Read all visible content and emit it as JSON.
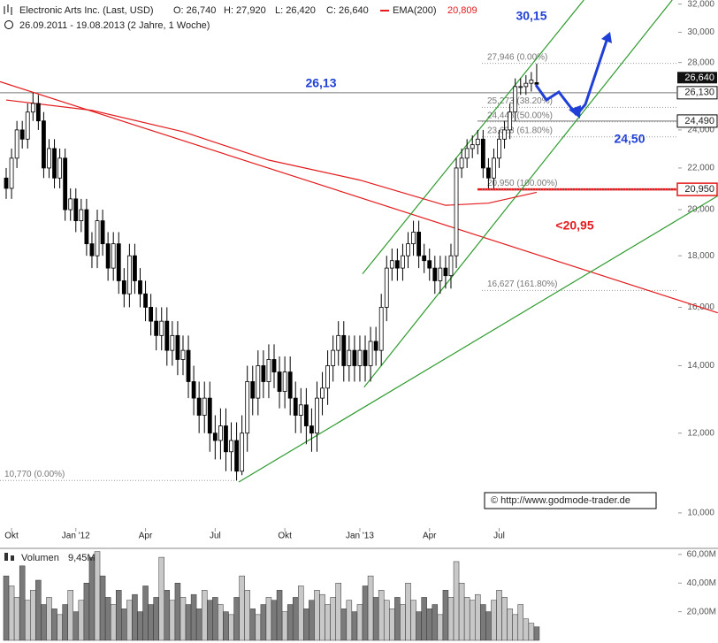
{
  "chart_data": {
    "type": "candlestick",
    "title": "Electronic Arts Inc. (Last, USD)",
    "header_labels": [
      "O: 26,740",
      "H: 27,920",
      "L: 26,420",
      "C: 26,640"
    ],
    "ema_label": "EMA(200)",
    "ema_value": "20,809",
    "subtitle": "26.09.2011 - 19.08.2013 (2 Jahre, 1 Woche)",
    "log_scale": true,
    "categories": [
      null,
      "Okt",
      null,
      null,
      null,
      null,
      null,
      null,
      null,
      null,
      null,
      null,
      null,
      "Jan '12",
      null,
      null,
      null,
      null,
      null,
      null,
      null,
      null,
      null,
      null,
      null,
      null,
      "Apr",
      null,
      null,
      null,
      null,
      null,
      null,
      null,
      null,
      null,
      null,
      null,
      null,
      "Jul",
      null,
      null,
      null,
      null,
      null,
      null,
      null,
      null,
      null,
      null,
      null,
      null,
      "Okt",
      null,
      null,
      null,
      null,
      null,
      null,
      null,
      null,
      null,
      null,
      null,
      null,
      null,
      "Jan '13",
      null,
      null,
      null,
      null,
      null,
      null,
      null,
      null,
      null,
      null,
      null,
      null,
      "Apr",
      null,
      null,
      null,
      null,
      null,
      null,
      null,
      null,
      null,
      null,
      null,
      null,
      "Jul",
      null,
      null,
      null,
      null,
      null,
      null,
      null
    ],
    "open": [
      21.5,
      21.0,
      22.5,
      24.0,
      23.5,
      25.0,
      25.5,
      24.5,
      22.0,
      23.0,
      21.5,
      22.5,
      20.0,
      20.5,
      19.5,
      20.0,
      18.5,
      18.0,
      19.5,
      18.5,
      17.5,
      18.5,
      17.0,
      16.5,
      18.0,
      17.0,
      16.5,
      16.0,
      15.5,
      15.0,
      15.5,
      14.5,
      15.0,
      14.2,
      14.5,
      13.5,
      13.0,
      12.5,
      13.0,
      12.0,
      11.8,
      12.2,
      11.5,
      11.8,
      11.0,
      12.0,
      13.5,
      13.0,
      14.0,
      13.5,
      14.2,
      13.8,
      13.2,
      13.8,
      13.0,
      12.5,
      12.8,
      12.2,
      12.0,
      13.0,
      13.3,
      14.0,
      14.5,
      15.0,
      14.0,
      14.5,
      14.0,
      14.5,
      14.0,
      14.8,
      14.5,
      16.0,
      17.5,
      17.8,
      17.5,
      18.0,
      18.5,
      19.0,
      18.0,
      17.8,
      17.5,
      17.0,
      17.5,
      17.2,
      18.0,
      22.0,
      22.5,
      23.0,
      23.2,
      23.5,
      22.0,
      21.5,
      22.5,
      23.5,
      24.0,
      25.0,
      26.5,
      26.5,
      26.7,
      26.74
    ],
    "high": [
      22.0,
      23.0,
      24.5,
      24.5,
      25.5,
      26.13,
      26.0,
      25.0,
      23.5,
      23.5,
      23.0,
      23.0,
      21.0,
      21.0,
      20.5,
      20.5,
      19.0,
      20.0,
      20.0,
      19.0,
      19.0,
      19.0,
      17.5,
      18.5,
      18.5,
      17.5,
      17.0,
      16.5,
      16.0,
      16.0,
      16.0,
      15.5,
      15.5,
      15.0,
      15.0,
      14.0,
      13.5,
      13.5,
      13.5,
      12.5,
      12.7,
      12.7,
      12.3,
      12.3,
      12.5,
      14.0,
      14.0,
      14.5,
      14.5,
      14.7,
      14.7,
      14.3,
      14.3,
      14.3,
      13.5,
      13.3,
      13.3,
      12.7,
      13.5,
      13.8,
      14.5,
      15.0,
      15.5,
      15.5,
      15.0,
      15.0,
      15.0,
      15.0,
      15.3,
      15.3,
      16.5,
      18.0,
      18.3,
      18.3,
      18.5,
      19.0,
      19.5,
      19.5,
      18.5,
      18.3,
      18.0,
      18.0,
      18.0,
      18.5,
      22.5,
      23.0,
      23.5,
      23.7,
      24.0,
      24.0,
      22.5,
      23.0,
      24.0,
      24.5,
      25.5,
      27.0,
      27.0,
      27.2,
      27.4,
      27.92
    ],
    "low": [
      20.5,
      20.5,
      22.0,
      23.0,
      23.0,
      24.5,
      24.0,
      21.5,
      21.5,
      21.0,
      21.0,
      19.5,
      19.5,
      19.0,
      19.0,
      18.0,
      17.5,
      17.5,
      18.0,
      17.0,
      17.0,
      16.5,
      16.0,
      16.0,
      16.5,
      16.0,
      15.5,
      15.0,
      14.5,
      14.5,
      14.0,
      14.0,
      13.7,
      13.7,
      13.0,
      12.5,
      12.0,
      12.0,
      11.5,
      11.3,
      11.3,
      11.0,
      11.0,
      10.77,
      10.9,
      11.5,
      12.5,
      12.5,
      13.0,
      13.0,
      13.3,
      12.7,
      12.7,
      12.5,
      12.0,
      12.0,
      11.7,
      11.5,
      11.5,
      12.5,
      12.8,
      13.5,
      14.0,
      13.5,
      13.5,
      13.5,
      13.5,
      13.5,
      13.5,
      14.0,
      14.0,
      15.5,
      17.0,
      17.0,
      17.0,
      17.5,
      18.0,
      17.5,
      17.3,
      17.0,
      16.5,
      16.5,
      16.7,
      16.7,
      17.5,
      21.5,
      22.0,
      22.5,
      22.7,
      21.5,
      21.0,
      21.0,
      22.0,
      23.0,
      23.5,
      24.5,
      26.0,
      26.0,
      26.2,
      26.42
    ],
    "close": [
      21.0,
      22.5,
      24.0,
      23.5,
      25.0,
      25.5,
      24.5,
      22.0,
      23.0,
      21.5,
      22.5,
      20.0,
      20.5,
      19.5,
      20.0,
      18.5,
      18.0,
      19.5,
      18.5,
      17.5,
      18.5,
      17.0,
      16.5,
      18.0,
      17.0,
      16.5,
      16.0,
      15.5,
      15.0,
      15.5,
      14.5,
      15.0,
      14.2,
      14.5,
      13.5,
      13.0,
      12.5,
      13.0,
      12.0,
      11.8,
      12.2,
      11.5,
      11.8,
      11.0,
      12.0,
      13.5,
      13.0,
      14.0,
      13.5,
      14.2,
      13.8,
      13.2,
      13.8,
      13.0,
      12.5,
      12.8,
      12.2,
      12.0,
      13.0,
      13.3,
      14.0,
      14.5,
      15.0,
      14.0,
      14.5,
      14.0,
      14.5,
      14.0,
      14.8,
      14.5,
      16.0,
      17.5,
      17.8,
      17.5,
      18.0,
      18.5,
      19.0,
      18.0,
      17.8,
      17.5,
      17.0,
      17.5,
      17.2,
      18.0,
      22.0,
      22.5,
      23.0,
      23.2,
      23.5,
      22.0,
      21.5,
      22.5,
      23.5,
      24.0,
      25.0,
      26.5,
      26.5,
      26.7,
      26.9,
      26.64
    ],
    "last_label": "26,640",
    "ylim": [
      9.66,
      32.3
    ],
    "yticks": [
      {
        "value": 10,
        "label": "10,000"
      },
      {
        "value": 12,
        "label": "12,000"
      },
      {
        "value": 14,
        "label": "14,000"
      },
      {
        "value": 16,
        "label": "16,000"
      },
      {
        "value": 18,
        "label": "18,000"
      },
      {
        "value": 20,
        "label": "20,000"
      },
      {
        "value": 22,
        "label": "22,000"
      },
      {
        "value": 24,
        "label": "24,000"
      },
      {
        "value": 26,
        "label": "26,000"
      },
      {
        "value": 28,
        "label": "28,000"
      },
      {
        "value": 30,
        "label": "30,000"
      },
      {
        "value": 32,
        "label": "32,000"
      }
    ],
    "ema": {
      "name": "EMA(200)",
      "color": "#e41a1c",
      "x": [
        0,
        16,
        33,
        49,
        66,
        82,
        90,
        99
      ],
      "values": [
        25.7,
        25.1,
        23.9,
        22.4,
        21.4,
        20.2,
        20.3,
        20.809
      ]
    },
    "trendlines": [
      {
        "color": "#e41a1c",
        "x": [
          -1.155,
          132.8
        ],
        "y": [
          26.8,
          15.8
        ]
      },
      {
        "color": "#2e9b2e",
        "x": [
          43.4,
          132.8
        ],
        "y": [
          10.73,
          20.64
        ]
      },
      {
        "color": "#2e9b2e",
        "x": [
          66.8,
          124.3
        ],
        "y": [
          13.33,
          32.3
        ]
      },
      {
        "color": "#2e9b2e",
        "x": [
          66.5,
          107.8
        ],
        "y": [
          17.27,
          32.3
        ]
      }
    ],
    "fibonacci": [
      {
        "value": 27.946,
        "label": "27,946 (0.00%)"
      },
      {
        "value": 25.273,
        "label": "25,273 (38.20%)"
      },
      {
        "value": 24.448,
        "label": "24,448 (50.00%)"
      },
      {
        "value": 23.623,
        "label": "23,623 (61.80%)"
      },
      {
        "value": 20.95,
        "label": "20,950 (100.00%)"
      },
      {
        "value": 16.627,
        "label": "16,627 (161.80%)"
      },
      {
        "value": 10.77,
        "label": "10,770 (0.00%)"
      }
    ],
    "levels": [
      {
        "value": 26.13,
        "label": "26,130",
        "color": "#000000"
      },
      {
        "value": 24.49,
        "label": "24,490",
        "color": "#000000"
      },
      {
        "value": 20.95,
        "label": "20,950",
        "color": "#e41a1c"
      }
    ],
    "annotations": [
      {
        "text": "30,15",
        "color": "#1f3fd6"
      },
      {
        "text": "26,13",
        "color": "#1f3fd6"
      },
      {
        "text": "24,50",
        "color": "#1f3fd6"
      },
      {
        "text": "<20,95",
        "color": "#e41a1c"
      }
    ],
    "copyright": "© http://www.godmode-trader.de",
    "volume": {
      "name": "Volumen",
      "value_label": "9,45M",
      "values": [
        45,
        38,
        30,
        52,
        28,
        35,
        42,
        25,
        30,
        22,
        18,
        25,
        35,
        20,
        28,
        40,
        58,
        62,
        45,
        30,
        25,
        35,
        22,
        28,
        32,
        20,
        38,
        25,
        30,
        58,
        35,
        28,
        40,
        30,
        25,
        32,
        22,
        35,
        28,
        30,
        25,
        20,
        18,
        30,
        45,
        35,
        22,
        18,
        25,
        30,
        28,
        35,
        20,
        25,
        30,
        38,
        22,
        28,
        35,
        32,
        25,
        30,
        40,
        22,
        28,
        20,
        25,
        38,
        45,
        30,
        35,
        28,
        22,
        30,
        25,
        40,
        28,
        20,
        30,
        22,
        25,
        18,
        35,
        30,
        55,
        40,
        30,
        28,
        32,
        25,
        20,
        28,
        35,
        30,
        22,
        18,
        25,
        15,
        12,
        9.45
      ],
      "ylim": [
        0,
        63
      ],
      "yticks": [
        {
          "value": 20,
          "label": "20,00M"
        },
        {
          "value": 40,
          "label": "40,00M"
        },
        {
          "value": 60,
          "label": "60,00M"
        }
      ]
    }
  }
}
